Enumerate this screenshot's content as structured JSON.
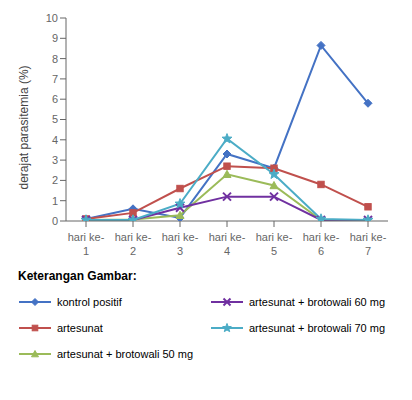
{
  "chart_data": {
    "type": "line",
    "categories": [
      "hari ke-\n1",
      "hari ke-\n2",
      "hari ke-\n3",
      "hari ke-\n4",
      "hari ke-\n5",
      "hari ke-\n6",
      "hari ke-\n7"
    ],
    "series": [
      {
        "name": "kontrol positif",
        "color": "#4472C4",
        "marker": "diamond",
        "values": [
          0.1,
          0.6,
          0.15,
          3.3,
          2.6,
          8.65,
          5.8
        ]
      },
      {
        "name": "artesunat",
        "color": "#C0504D",
        "marker": "square",
        "values": [
          0.1,
          0.4,
          1.6,
          2.7,
          2.6,
          1.8,
          0.7
        ]
      },
      {
        "name": "artesunat + brotowali 50 mg",
        "color": "#9BBB59",
        "marker": "triangle",
        "values": [
          0.05,
          0.08,
          0.28,
          2.3,
          1.75,
          0.05,
          0.05
        ]
      },
      {
        "name": "artesunat + brotowali 60 mg",
        "color": "#7030A0",
        "marker": "x",
        "values": [
          0.05,
          0.05,
          0.65,
          1.2,
          1.2,
          0.05,
          0.05
        ]
      },
      {
        "name": "artesunat + brotowali 70 mg",
        "color": "#4BACC6",
        "marker": "star",
        "values": [
          0.05,
          0.05,
          0.85,
          4.05,
          2.3,
          0.1,
          0.05
        ]
      }
    ],
    "ylabel": "derajat parasitemia (%)",
    "ylim": [
      0,
      10
    ],
    "yticks": [
      0,
      1,
      2,
      3,
      4,
      5,
      6,
      7,
      8,
      9,
      10
    ],
    "grid": false,
    "legend": "bottom",
    "legend_title": "Keterangan Gambar:"
  }
}
